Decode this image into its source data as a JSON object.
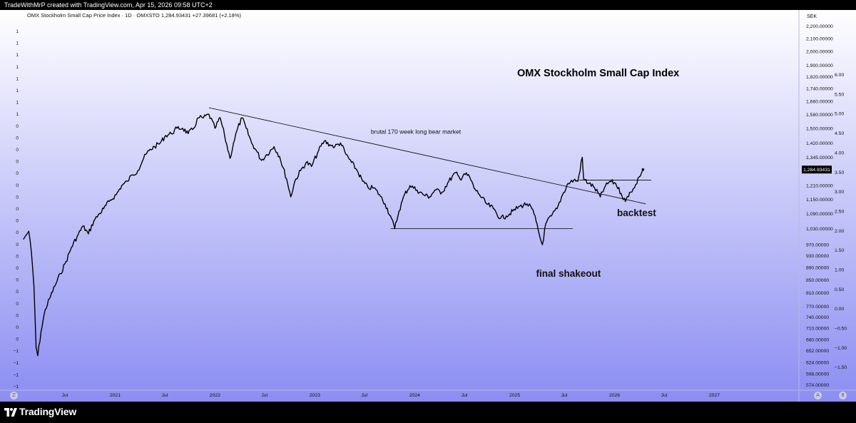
{
  "header": {
    "attribution": "TradeWithMrP created with TradingView.com, Apr 15, 2026 09:58 UTC+2"
  },
  "footer": {
    "logo_text": "TradingView",
    "logo_icon": "tradingview-logo-icon"
  },
  "colors": {
    "background_top": "#ffffff",
    "background_bottom": "#8b8df2",
    "price_line": "#000000",
    "trendline": "#000000",
    "last_price_label_bg": "#000000"
  },
  "chart_data": {
    "type": "line",
    "legend": "OMX Stockholm Small Cap Price Index · 1D · OMXSTO  1,284.93431  +27.39681 (+2.18%)",
    "title": "OMX Stockholm Small Cap Index",
    "currency_label": "SEK",
    "scale": "log",
    "ylim": [
      570,
      2250
    ],
    "last_price_label": "1,284.93431",
    "y_ticks": [
      "2,200.00000",
      "2,100.00000",
      "2,000.00000",
      "1,900.00000",
      "1,820.00000",
      "1,740.00000",
      "1,660.00000",
      "1,580.00000",
      "1,500.00000",
      "1,420.00000",
      "1,345.00000",
      "1,210.00000",
      "1,150.00000",
      "1,090.00000",
      "1,030.00000",
      "970.00000",
      "930.00000",
      "890.00000",
      "850.00000",
      "810.00000",
      "770.00000",
      "740.00000",
      "710.00000",
      "680.00000",
      "652.00000",
      "624.00000",
      "598.00000",
      "574.00000"
    ],
    "y_tick_values": [
      2200,
      2100,
      2000,
      1900,
      1820,
      1740,
      1660,
      1580,
      1500,
      1420,
      1345,
      1210,
      1150,
      1090,
      1030,
      970,
      930,
      890,
      850,
      810,
      770,
      740,
      710,
      680,
      652,
      624,
      598,
      574
    ],
    "secondary_ticks": [
      "6.00",
      "5.50",
      "5.00",
      "4.50",
      "4.00",
      "3.50",
      "3.00",
      "2.50",
      "2.00",
      "1.50",
      "1.00",
      "0.50",
      "0.00",
      "−0.50",
      "−1.00",
      "−1.50"
    ],
    "secondary_tick_values": [
      6.0,
      5.5,
      5.0,
      4.5,
      4.0,
      3.5,
      3.0,
      2.5,
      2.0,
      1.5,
      1.0,
      0.5,
      0.0,
      -0.5,
      -1.0,
      -1.5
    ],
    "secondary_range": [
      -2.0,
      7.4
    ],
    "left_ticks": [
      "1",
      "1",
      "1",
      "1",
      "1",
      "1",
      "1",
      "1",
      "0",
      "0",
      "0",
      "0",
      "0",
      "0",
      "0",
      "0",
      "0",
      "0",
      "0",
      "0",
      "0",
      "0",
      "0",
      "0",
      "0",
      "0",
      "0",
      "−1",
      "−1",
      "−1",
      "−1"
    ],
    "x_ticks": [
      {
        "label": "Jul",
        "date": "2020-07-01"
      },
      {
        "label": "2021",
        "date": "2021-01-01"
      },
      {
        "label": "Jul",
        "date": "2021-07-01"
      },
      {
        "label": "2022",
        "date": "2022-01-01"
      },
      {
        "label": "Jul",
        "date": "2022-07-01"
      },
      {
        "label": "2023",
        "date": "2023-01-01"
      },
      {
        "label": "Jul",
        "date": "2023-07-01"
      },
      {
        "label": "2024",
        "date": "2024-01-01"
      },
      {
        "label": "Jul",
        "date": "2024-07-01"
      },
      {
        "label": "2025",
        "date": "2025-01-01"
      },
      {
        "label": "Jul",
        "date": "2025-07-01"
      },
      {
        "label": "2026",
        "date": "2026-01-01"
      },
      {
        "label": "Jul",
        "date": "2026-07-01"
      },
      {
        "label": "2027",
        "date": "2027-01-01"
      }
    ],
    "xlim": [
      "2020-02-01",
      "2027-11-01"
    ],
    "series": [
      {
        "points": [
          [
            "2020-02-01",
            990
          ],
          [
            "2020-02-10",
            1005
          ],
          [
            "2020-02-20",
            1020
          ],
          [
            "2020-03-01",
            940
          ],
          [
            "2020-03-10",
            830
          ],
          [
            "2020-03-18",
            660
          ],
          [
            "2020-03-24",
            640
          ],
          [
            "2020-04-05",
            700
          ],
          [
            "2020-04-20",
            760
          ],
          [
            "2020-05-10",
            800
          ],
          [
            "2020-05-25",
            830
          ],
          [
            "2020-06-15",
            870
          ],
          [
            "2020-07-05",
            910
          ],
          [
            "2020-07-25",
            960
          ],
          [
            "2020-08-15",
            1000
          ],
          [
            "2020-09-05",
            1040
          ],
          [
            "2020-09-25",
            1010
          ],
          [
            "2020-10-15",
            1060
          ],
          [
            "2020-11-05",
            1090
          ],
          [
            "2020-11-20",
            1110
          ],
          [
            "2020-12-10",
            1140
          ],
          [
            "2021-01-05",
            1170
          ],
          [
            "2021-01-25",
            1210
          ],
          [
            "2021-02-15",
            1230
          ],
          [
            "2021-03-05",
            1260
          ],
          [
            "2021-03-25",
            1280
          ],
          [
            "2021-04-15",
            1340
          ],
          [
            "2021-05-05",
            1380
          ],
          [
            "2021-05-25",
            1400
          ],
          [
            "2021-06-15",
            1420
          ],
          [
            "2021-07-05",
            1460
          ],
          [
            "2021-07-25",
            1470
          ],
          [
            "2021-08-15",
            1500
          ],
          [
            "2021-09-05",
            1500
          ],
          [
            "2021-09-25",
            1470
          ],
          [
            "2021-10-15",
            1500
          ],
          [
            "2021-11-01",
            1560
          ],
          [
            "2021-11-20",
            1560
          ],
          [
            "2021-12-10",
            1580
          ],
          [
            "2022-01-01",
            1500
          ],
          [
            "2022-01-20",
            1560
          ],
          [
            "2022-02-05",
            1460
          ],
          [
            "2022-02-25",
            1340
          ],
          [
            "2022-03-10",
            1420
          ],
          [
            "2022-03-25",
            1500
          ],
          [
            "2022-04-10",
            1560
          ],
          [
            "2022-04-25",
            1500
          ],
          [
            "2022-05-15",
            1420
          ],
          [
            "2022-06-01",
            1380
          ],
          [
            "2022-06-20",
            1330
          ],
          [
            "2022-07-10",
            1360
          ],
          [
            "2022-08-05",
            1400
          ],
          [
            "2022-08-25",
            1350
          ],
          [
            "2022-09-20",
            1240
          ],
          [
            "2022-10-05",
            1160
          ],
          [
            "2022-10-20",
            1230
          ],
          [
            "2022-11-10",
            1280
          ],
          [
            "2022-12-01",
            1320
          ],
          [
            "2022-12-20",
            1300
          ],
          [
            "2023-01-15",
            1380
          ],
          [
            "2023-02-05",
            1430
          ],
          [
            "2023-02-25",
            1410
          ],
          [
            "2023-03-15",
            1400
          ],
          [
            "2023-04-05",
            1420
          ],
          [
            "2023-04-25",
            1360
          ],
          [
            "2023-05-15",
            1320
          ],
          [
            "2023-06-05",
            1280
          ],
          [
            "2023-06-25",
            1230
          ],
          [
            "2023-07-15",
            1200
          ],
          [
            "2023-08-05",
            1200
          ],
          [
            "2023-08-25",
            1170
          ],
          [
            "2023-09-15",
            1130
          ],
          [
            "2023-10-05",
            1080
          ],
          [
            "2023-10-20",
            1030
          ],
          [
            "2023-11-05",
            1100
          ],
          [
            "2023-11-25",
            1170
          ],
          [
            "2023-12-15",
            1210
          ],
          [
            "2024-01-10",
            1190
          ],
          [
            "2024-02-01",
            1170
          ],
          [
            "2024-02-25",
            1160
          ],
          [
            "2024-03-15",
            1190
          ],
          [
            "2024-04-10",
            1180
          ],
          [
            "2024-05-05",
            1230
          ],
          [
            "2024-05-30",
            1270
          ],
          [
            "2024-06-15",
            1240
          ],
          [
            "2024-06-30",
            1265
          ],
          [
            "2024-07-20",
            1250
          ],
          [
            "2024-08-05",
            1200
          ],
          [
            "2024-08-25",
            1170
          ],
          [
            "2024-09-20",
            1130
          ],
          [
            "2024-10-15",
            1110
          ],
          [
            "2024-11-10",
            1070
          ],
          [
            "2024-12-01",
            1080
          ],
          [
            "2024-12-25",
            1100
          ],
          [
            "2025-01-20",
            1120
          ],
          [
            "2025-02-15",
            1130
          ],
          [
            "2025-03-05",
            1110
          ],
          [
            "2025-03-20",
            1060
          ],
          [
            "2025-04-05",
            990
          ],
          [
            "2025-04-12",
            970
          ],
          [
            "2025-04-25",
            1050
          ],
          [
            "2025-05-15",
            1080
          ],
          [
            "2025-06-05",
            1110
          ],
          [
            "2025-06-25",
            1170
          ],
          [
            "2025-07-15",
            1220
          ],
          [
            "2025-08-05",
            1235
          ],
          [
            "2025-08-20",
            1230
          ],
          [
            "2025-09-05",
            1345
          ],
          [
            "2025-09-10",
            1240
          ],
          [
            "2025-09-30",
            1220
          ],
          [
            "2025-10-20",
            1200
          ],
          [
            "2025-11-10",
            1160
          ],
          [
            "2025-11-25",
            1200
          ],
          [
            "2025-12-15",
            1230
          ],
          [
            "2026-01-05",
            1220
          ],
          [
            "2026-01-25",
            1175
          ],
          [
            "2026-02-10",
            1140
          ],
          [
            "2026-02-25",
            1180
          ],
          [
            "2026-03-15",
            1200
          ],
          [
            "2026-04-01",
            1250
          ],
          [
            "2026-04-15",
            1285
          ]
        ]
      }
    ],
    "trendline": {
      "start": [
        "2021-12-10",
        1620
      ],
      "end": [
        "2026-04-25",
        1130
      ]
    },
    "support_line": {
      "start": [
        "2023-10-05",
        1030
      ],
      "end": [
        "2025-08-01",
        1030
      ],
      "value": 1030
    },
    "resistance_line": {
      "start": [
        "2025-08-25",
        1235
      ],
      "end": [
        "2026-05-15",
        1235
      ],
      "value": 1235
    },
    "annotations": [
      {
        "text": "brutal 170 week long bear market",
        "at": [
          "2023-07-25",
          1470
        ]
      },
      {
        "text": "backtest",
        "at": [
          "2026-01-10",
          1080
        ]
      },
      {
        "text": "final shakeout",
        "at": [
          "2025-03-20",
          860
        ]
      }
    ],
    "grid": false
  }
}
